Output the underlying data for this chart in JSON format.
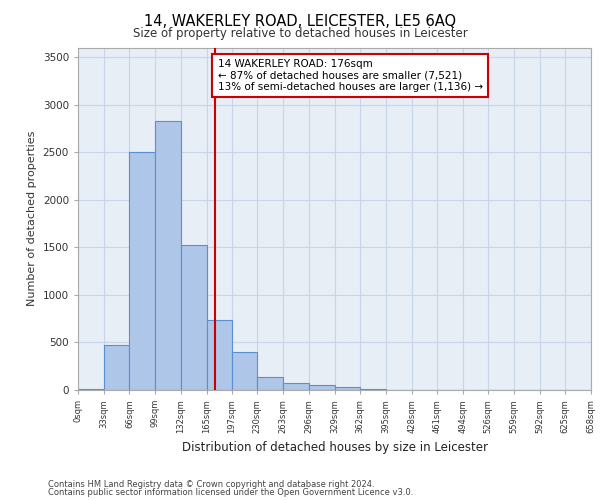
{
  "title1": "14, WAKERLEY ROAD, LEICESTER, LE5 6AQ",
  "title2": "Size of property relative to detached houses in Leicester",
  "xlabel": "Distribution of detached houses by size in Leicester",
  "ylabel": "Number of detached properties",
  "annotation_line1": "14 WAKERLEY ROAD: 176sqm",
  "annotation_line2": "← 87% of detached houses are smaller (7,521)",
  "annotation_line3": "13% of semi-detached houses are larger (1,136) →",
  "property_size": 176,
  "bar_left_edges": [
    0,
    33,
    66,
    99,
    132,
    165,
    197,
    230,
    263,
    296,
    329,
    362,
    395,
    428,
    461,
    494,
    526,
    559,
    592,
    625
  ],
  "bar_widths": [
    33,
    33,
    33,
    33,
    33,
    32,
    33,
    33,
    33,
    33,
    33,
    33,
    33,
    33,
    33,
    32,
    33,
    33,
    33,
    33
  ],
  "bar_heights": [
    10,
    470,
    2500,
    2830,
    1520,
    740,
    400,
    140,
    70,
    50,
    30,
    10,
    5,
    0,
    0,
    0,
    0,
    0,
    0,
    0
  ],
  "tick_labels": [
    "0sqm",
    "33sqm",
    "66sqm",
    "99sqm",
    "132sqm",
    "165sqm",
    "197sqm",
    "230sqm",
    "263sqm",
    "296sqm",
    "329sqm",
    "362sqm",
    "395sqm",
    "428sqm",
    "461sqm",
    "494sqm",
    "526sqm",
    "559sqm",
    "592sqm",
    "625sqm",
    "658sqm"
  ],
  "bar_color": "#aec6e8",
  "bar_edge_color": "#5b8fd4",
  "vline_color": "#cc0000",
  "vline_x": 176,
  "annotation_box_color": "#cc0000",
  "annotation_fill": "#ffffff",
  "grid_color": "#c8d4e8",
  "bg_color": "#e8eef6",
  "ylim": [
    0,
    3600
  ],
  "yticks": [
    0,
    500,
    1000,
    1500,
    2000,
    2500,
    3000,
    3500
  ],
  "footer1": "Contains HM Land Registry data © Crown copyright and database right 2024.",
  "footer2": "Contains public sector information licensed under the Open Government Licence v3.0."
}
